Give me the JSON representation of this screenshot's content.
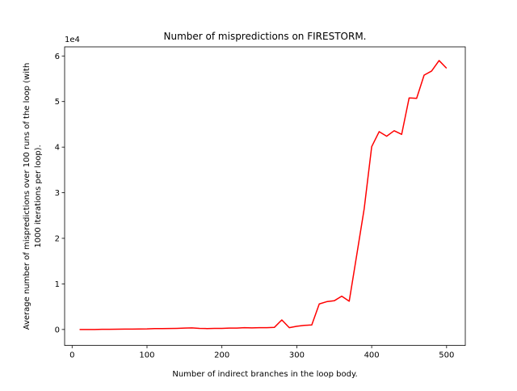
{
  "chart_data": {
    "type": "line",
    "title": "Number of mispredictions on FIRESTORM.",
    "xlabel": "Number of indirect branches in the loop body.",
    "ylabel_lines": [
      "Average number of mispredictions over 100 runs of the loop (with",
      "1000 iterations per loop)."
    ],
    "y_offset_label": "1e4",
    "xlim": [
      -10,
      525
    ],
    "ylim": [
      -3500,
      62000
    ],
    "x_ticks": [
      0,
      100,
      200,
      300,
      400,
      500
    ],
    "x_tick_labels": [
      "0",
      "100",
      "200",
      "300",
      "400",
      "500"
    ],
    "y_ticks": [
      0,
      10000,
      20000,
      30000,
      40000,
      50000,
      60000
    ],
    "y_tick_labels": [
      "0",
      "1",
      "2",
      "3",
      "4",
      "5",
      "6"
    ],
    "grid": false,
    "series": [
      {
        "color": "#ff0000",
        "x": [
          10,
          20,
          30,
          40,
          50,
          60,
          70,
          80,
          90,
          100,
          110,
          120,
          130,
          140,
          150,
          160,
          170,
          180,
          190,
          200,
          210,
          220,
          230,
          240,
          250,
          260,
          270,
          280,
          290,
          300,
          310,
          320,
          330,
          340,
          350,
          360,
          370,
          380,
          390,
          400,
          410,
          420,
          430,
          440,
          450,
          460,
          470,
          480,
          490,
          500
        ],
        "y": [
          0,
          0,
          0,
          50,
          50,
          60,
          80,
          80,
          100,
          120,
          200,
          200,
          220,
          250,
          300,
          350,
          250,
          200,
          250,
          250,
          300,
          300,
          400,
          350,
          400,
          400,
          450,
          2100,
          400,
          700,
          900,
          1000,
          5600,
          6100,
          6300,
          7300,
          6200,
          16300,
          26500,
          40100,
          43400,
          42400,
          43600,
          42800,
          50800,
          50700,
          55800,
          56700,
          59000,
          57300
        ]
      }
    ]
  }
}
